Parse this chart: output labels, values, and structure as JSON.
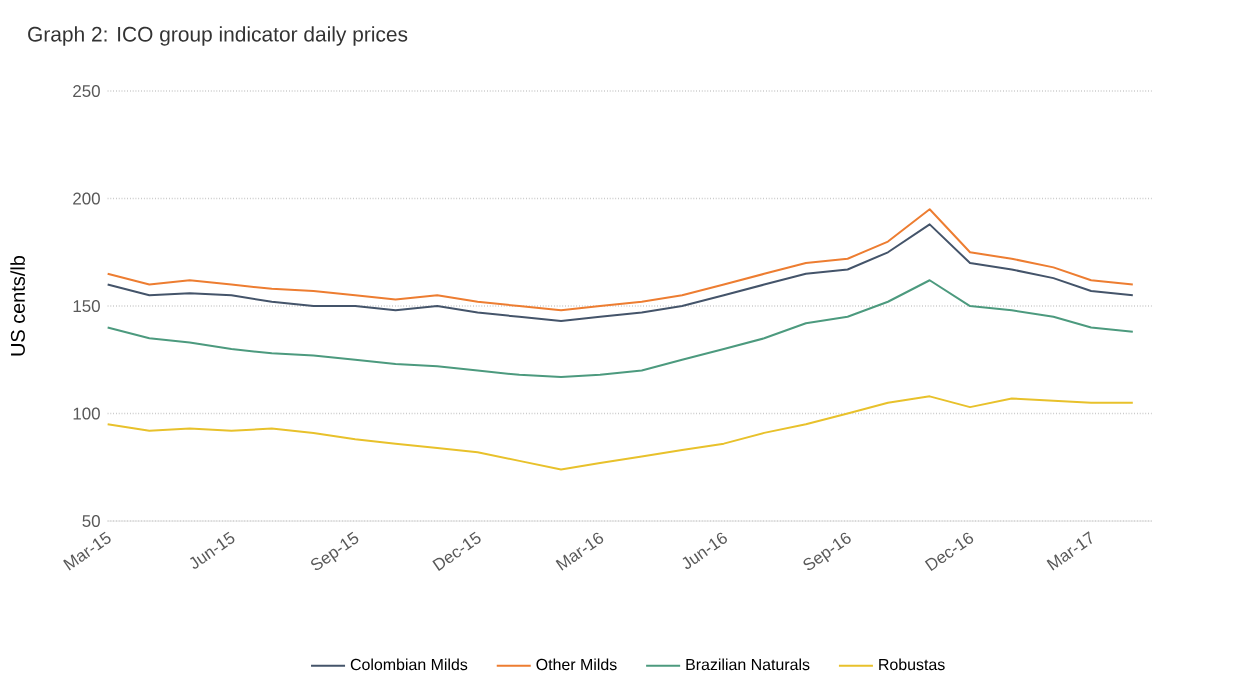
{
  "chart_data": {
    "type": "line",
    "title": "Graph 2: ICO group indicator daily prices",
    "ylabel": "US cents/lb",
    "x": [
      "2015-03-01",
      "2015-04-01",
      "2015-05-01",
      "2015-06-01",
      "2015-07-01",
      "2015-08-01",
      "2015-09-01",
      "2015-10-01",
      "2015-11-01",
      "2015-12-01",
      "2016-01-01",
      "2016-02-01",
      "2016-03-01",
      "2016-04-01",
      "2016-05-01",
      "2016-06-01",
      "2016-07-01",
      "2016-08-01",
      "2016-09-01",
      "2016-10-01",
      "2016-11-01",
      "2016-12-01",
      "2017-01-01",
      "2017-02-01",
      "2017-03-01",
      "2017-04-01"
    ],
    "series": [
      {
        "name": "Colombian Milds",
        "color": "#44546a",
        "values": [
          160,
          155,
          156,
          155,
          152,
          150,
          150,
          148,
          150,
          147,
          145,
          143,
          145,
          147,
          150,
          155,
          160,
          165,
          167,
          175,
          188,
          170,
          167,
          163,
          157,
          155
        ]
      },
      {
        "name": "Other Milds",
        "color": "#ed7d31",
        "values": [
          165,
          160,
          162,
          160,
          158,
          157,
          155,
          153,
          155,
          152,
          150,
          148,
          150,
          152,
          155,
          160,
          165,
          170,
          172,
          180,
          195,
          175,
          172,
          168,
          162,
          160
        ]
      },
      {
        "name": "Brazilian Naturals",
        "color": "#4c9a7e",
        "values": [
          140,
          135,
          133,
          130,
          128,
          127,
          125,
          123,
          122,
          120,
          118,
          117,
          118,
          120,
          125,
          130,
          135,
          142,
          145,
          152,
          162,
          150,
          148,
          145,
          140,
          138
        ]
      },
      {
        "name": "Robustas",
        "color": "#e8c12b",
        "values": [
          95,
          92,
          93,
          92,
          93,
          91,
          88,
          86,
          84,
          82,
          78,
          74,
          77,
          80,
          83,
          86,
          91,
          95,
          100,
          105,
          108,
          103,
          107,
          106,
          105,
          105
        ]
      }
    ],
    "xlim": [
      "2015-03-01",
      "2017-04-15"
    ],
    "xticks": [
      {
        "value": "2015-03-01",
        "label": "Mar-15"
      },
      {
        "value": "2015-06-01",
        "label": "Jun-15"
      },
      {
        "value": "2015-09-01",
        "label": "Sep-15"
      },
      {
        "value": "2015-12-01",
        "label": "Dec-15"
      },
      {
        "value": "2016-03-01",
        "label": "Mar-16"
      },
      {
        "value": "2016-06-01",
        "label": "Jun-16"
      },
      {
        "value": "2016-09-01",
        "label": "Sep-16"
      },
      {
        "value": "2016-12-01",
        "label": "Dec-16"
      },
      {
        "value": "2017-03-01",
        "label": "Mar-17"
      }
    ],
    "ylim": [
      50,
      250
    ],
    "yticks": [
      50,
      100,
      150,
      200,
      250
    ],
    "grid": "y",
    "legend": "bottom",
    "marker": "none",
    "line_style": "solid"
  }
}
